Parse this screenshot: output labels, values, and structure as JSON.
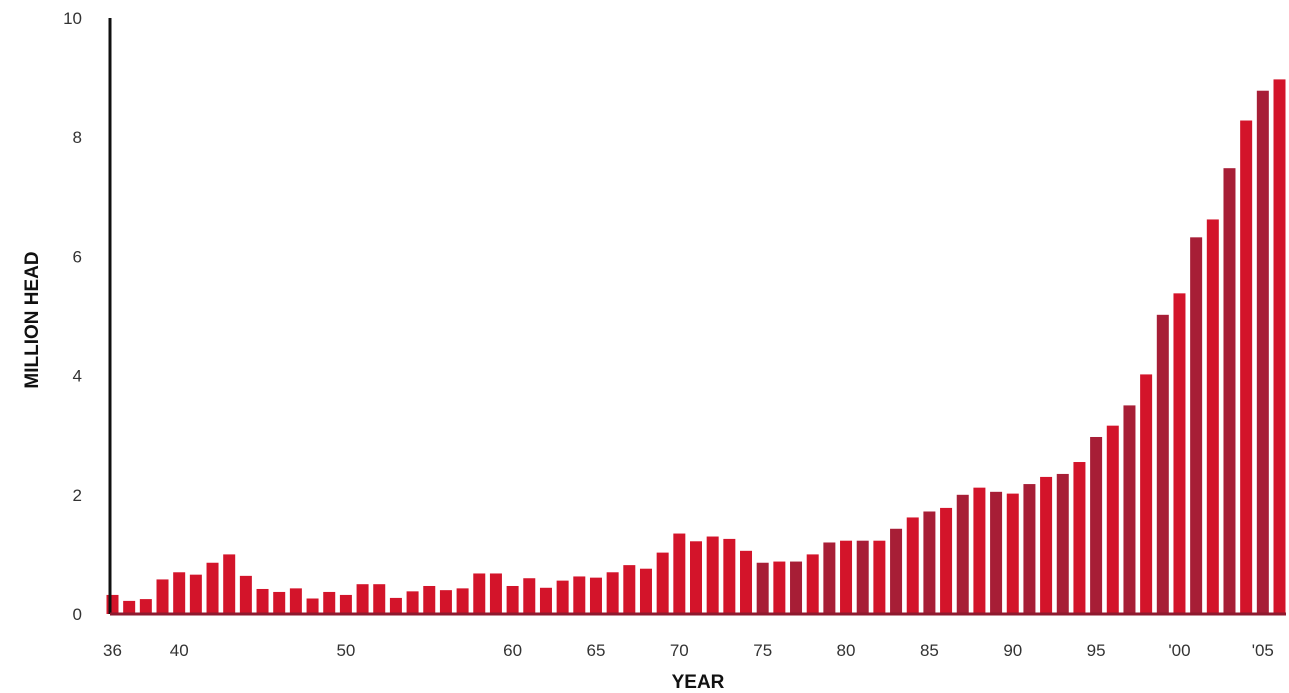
{
  "chart_data": {
    "type": "bar",
    "title": "",
    "xlabel": "YEAR",
    "ylabel": "MILLION HEAD",
    "ylim": [
      0,
      10
    ],
    "yticks": [
      "0",
      "2",
      "4",
      "6",
      "8",
      "10"
    ],
    "x_tick_labels": [
      {
        "year": 1936,
        "label": "36"
      },
      {
        "year": 1940,
        "label": "40"
      },
      {
        "year": 1950,
        "label": "50"
      },
      {
        "year": 1960,
        "label": "60"
      },
      {
        "year": 1965,
        "label": "65"
      },
      {
        "year": 1970,
        "label": "70"
      },
      {
        "year": 1975,
        "label": "75"
      },
      {
        "year": 1980,
        "label": "80"
      },
      {
        "year": 1985,
        "label": "85"
      },
      {
        "year": 1990,
        "label": "90"
      },
      {
        "year": 1995,
        "label": "95"
      },
      {
        "year": 2000,
        "label": "'00"
      },
      {
        "year": 2005,
        "label": "'05"
      }
    ],
    "grid": false,
    "years": [
      1936,
      1937,
      1938,
      1939,
      1940,
      1941,
      1942,
      1943,
      1944,
      1945,
      1946,
      1947,
      1948,
      1949,
      1950,
      1951,
      1952,
      1953,
      1954,
      1955,
      1956,
      1957,
      1958,
      1959,
      1960,
      1961,
      1962,
      1963,
      1964,
      1965,
      1966,
      1967,
      1968,
      1969,
      1970,
      1971,
      1972,
      1973,
      1974,
      1975,
      1976,
      1977,
      1978,
      1979,
      1980,
      1981,
      1982,
      1983,
      1984,
      1985,
      1986,
      1987,
      1988,
      1989,
      1990,
      1991,
      1992,
      1993,
      1994,
      1995,
      1996,
      1997,
      1998,
      1999,
      2000,
      2001,
      2002,
      2003,
      2004,
      2005,
      2006
    ],
    "values": [
      0.32,
      0.22,
      0.25,
      0.58,
      0.7,
      0.66,
      0.86,
      1.0,
      0.64,
      0.42,
      0.37,
      0.43,
      0.26,
      0.37,
      0.32,
      0.5,
      0.5,
      0.27,
      0.38,
      0.47,
      0.4,
      0.43,
      0.68,
      0.68,
      0.47,
      0.6,
      0.44,
      0.56,
      0.63,
      0.61,
      0.7,
      0.82,
      0.76,
      1.03,
      1.35,
      1.22,
      1.3,
      1.26,
      1.06,
      0.86,
      0.88,
      0.88,
      1.0,
      1.2,
      1.23,
      1.23,
      1.23,
      1.43,
      1.62,
      1.72,
      1.78,
      2.0,
      2.12,
      2.05,
      2.02,
      2.18,
      2.3,
      2.35,
      2.55,
      2.97,
      3.16,
      3.5,
      4.02,
      5.02,
      5.38,
      6.32,
      6.62,
      7.48,
      8.28,
      8.78,
      8.97
    ],
    "colors": {
      "bar_bright": "#d3142a",
      "bar_dark": "#a71e36",
      "axis": "#111111",
      "baseline": "#8e1a2f"
    }
  }
}
